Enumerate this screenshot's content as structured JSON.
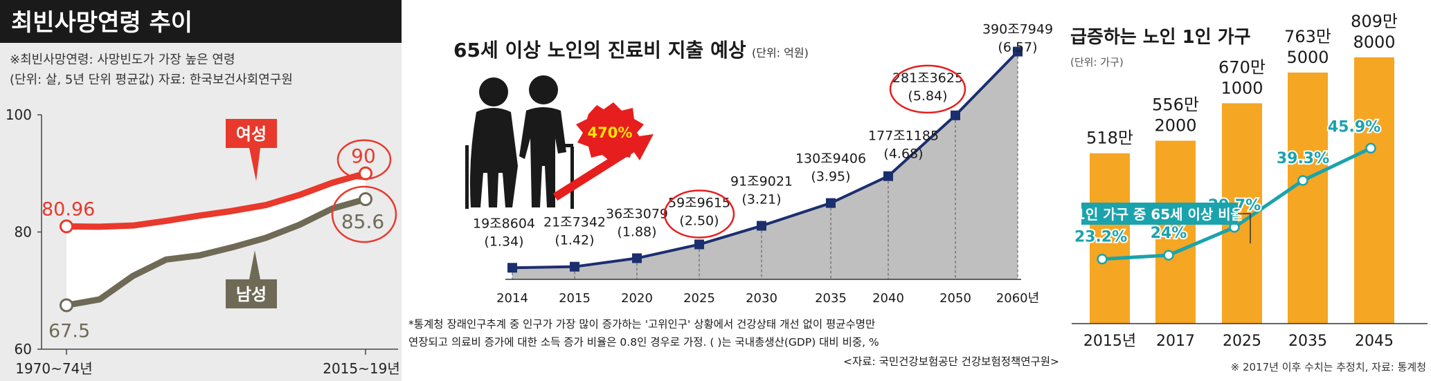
{
  "chart_data": [
    {
      "type": "line",
      "title": "최빈사망연령 추이",
      "note": "※최빈사망연령: 사망빈도가 가장 높은 연령",
      "unit_source": "(단위: 살, 5년 단위 평균값)  자료: 한국보건사회연구원",
      "y_ticks": [
        "100",
        "80",
        "60"
      ],
      "ylim": [
        60,
        100
      ],
      "x_labels": [
        "1970~74년",
        "2015~19년"
      ],
      "x_index": [
        0,
        1,
        2,
        3,
        4,
        5,
        6,
        7,
        8,
        9
      ],
      "series": [
        {
          "name": "여성",
          "color": "#e8392c",
          "values": [
            80.96,
            80.9,
            81.1,
            81.9,
            82.8,
            83.6,
            84.6,
            86.3,
            88.4,
            90
          ],
          "start_label": "80.96",
          "end_label": "90"
        },
        {
          "name": "남성",
          "color": "#6e6a56",
          "values": [
            67.5,
            68.5,
            72.5,
            75.3,
            76.0,
            77.4,
            79.0,
            81.2,
            84.0,
            85.6
          ],
          "start_label": "67.5",
          "end_label": "85.6"
        }
      ]
    },
    {
      "type": "area",
      "title": "65세 이상 노인의 진료비 지출 예상",
      "unit": "(단위: 억원)",
      "categories": [
        "2014",
        "2015",
        "2020",
        "2025",
        "2030",
        "2035",
        "2040",
        "2050",
        "2060년"
      ],
      "values": [
        198604,
        217342,
        363079,
        599615,
        919021,
        1309406,
        1771185,
        2813625,
        3907949
      ],
      "value_labels": [
        "19조8604",
        "21조7342",
        "36조3079",
        "59조9615",
        "91조9021",
        "130조9406",
        "177조1185",
        "281조3625",
        "390조7949"
      ],
      "gdp_ratio_labels": [
        "(1.34)",
        "(1.42)",
        "(1.88)",
        "(2.50)",
        "(3.21)",
        "(3.95)",
        "(4.68)",
        "(5.84)",
        "(6.57)"
      ],
      "ylim": [
        0,
        4200000
      ],
      "callout": "470%",
      "footnote_lines": [
        "*통계청 장래인구추계 중 인구가 가장 많이 증가하는 '고위인구' 상황에서 건강상태 개선 없이 평균수명만",
        "연장되고 의료비 증가에 대한 소득 증가 비율은 0.8인 경우로 가정. (  )는 국내총생산(GDP) 대비 비중, %",
        "<자료: 국민건강보험공단 건강보험정책연구원>"
      ]
    },
    {
      "type": "bar",
      "title": "급증하는 노인 1인 가구",
      "unit": "(단위: 가구)",
      "categories": [
        "2015년",
        "2017",
        "2025",
        "2035",
        "2045"
      ],
      "values": [
        5180000,
        5562000,
        6701000,
        7635000,
        8098000
      ],
      "bar_labels": [
        [
          "518만"
        ],
        [
          "556만",
          "2000"
        ],
        [
          "670만",
          "1000"
        ],
        [
          "763만",
          "5000"
        ],
        [
          "809만",
          "8000"
        ]
      ],
      "ylim": [
        0,
        9000000
      ],
      "bar_color": "#f5a623",
      "line": {
        "name": "1인 가구 중 65세 이상 비율",
        "color": "#1aa3ad",
        "values": [
          23.2,
          24,
          29.7,
          39.3,
          45.9
        ],
        "labels": [
          "23.2%",
          "24%",
          "29.7%",
          "39.3%",
          "45.9%"
        ],
        "ylim": [
          10,
          55
        ]
      },
      "footnote": "※ 2017년 이후 수치는 추정치, 자료: 통계청"
    }
  ]
}
